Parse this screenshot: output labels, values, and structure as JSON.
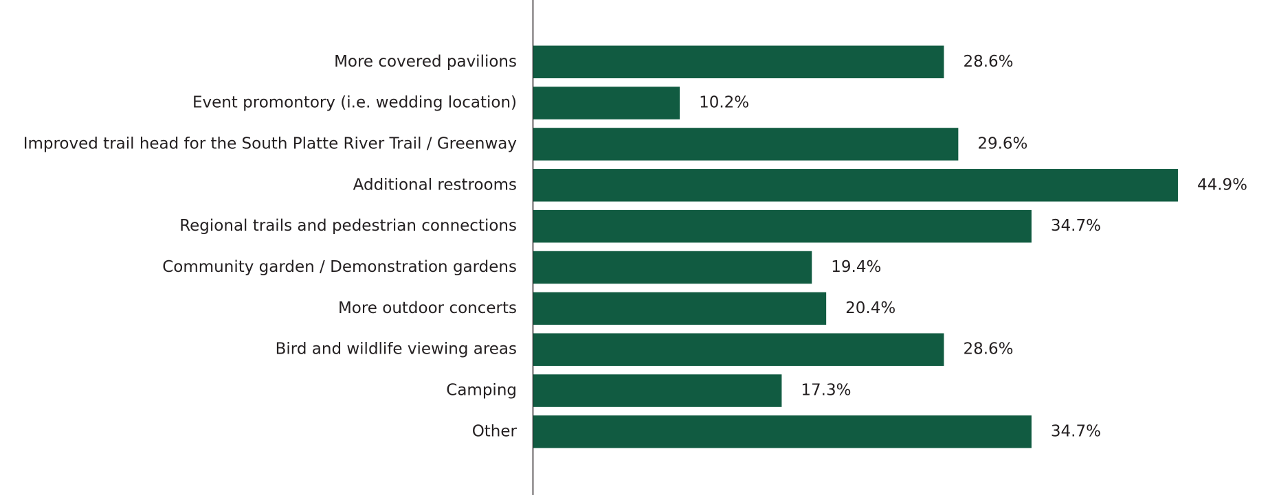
{
  "chart_data": {
    "type": "bar",
    "orientation": "horizontal",
    "categories": [
      "More covered pavilions",
      "Event promontory (i.e. wedding location)",
      "Improved trail head for the South Platte River Trail / Greenway",
      "Additional restrooms",
      "Regional trails and pedestrian connections",
      "Community garden / Demonstration gardens",
      "More outdoor concerts",
      "Bird and wildlife viewing areas",
      "Camping",
      "Other"
    ],
    "values": [
      28.6,
      10.2,
      29.6,
      44.9,
      34.7,
      19.4,
      20.4,
      28.6,
      17.3,
      34.7
    ],
    "value_labels": [
      "28.6%",
      "10.2%",
      "29.6%",
      "44.9%",
      "34.7%",
      "19.4%",
      "20.4%",
      "28.6%",
      "17.3%",
      "34.7%"
    ],
    "color": "#115b41"
  }
}
